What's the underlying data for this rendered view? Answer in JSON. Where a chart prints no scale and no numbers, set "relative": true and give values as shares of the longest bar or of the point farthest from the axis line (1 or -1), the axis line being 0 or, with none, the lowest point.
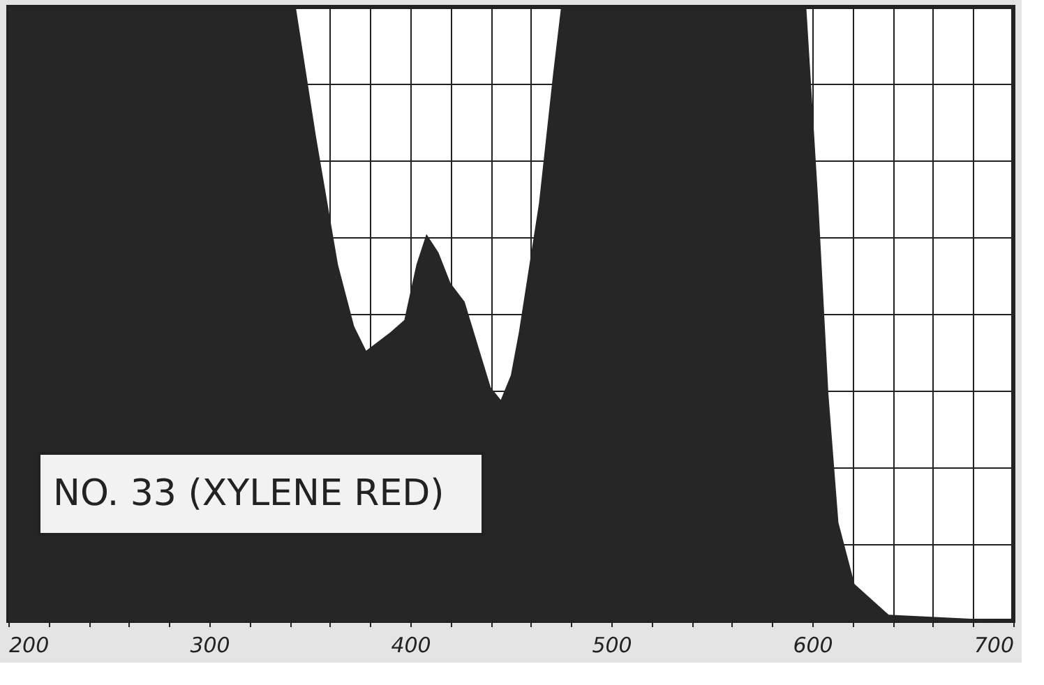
{
  "chart_data": {
    "type": "area",
    "relative": true,
    "color": "#262626",
    "x": [
      200,
      343,
      353,
      364,
      372,
      378,
      390,
      397,
      403,
      408,
      414,
      420,
      427,
      440,
      445,
      450,
      454,
      464,
      471,
      475,
      597,
      603,
      608,
      613,
      621,
      638,
      700
    ],
    "values": [
      1,
      1,
      0.79,
      0.58,
      0.48,
      0.44,
      0.47,
      0.49,
      0.58,
      0.63,
      0.6,
      0.55,
      0.52,
      0.38,
      0.36,
      0.4,
      0.47,
      0.68,
      0.89,
      1,
      1,
      0.68,
      0.37,
      0.16,
      0.06,
      0.01,
      0
    ],
    "xlim": [
      200,
      700
    ],
    "xticks": [
      200,
      {
        "value": 220,
        "label": null
      },
      {
        "value": 240,
        "label": null
      },
      {
        "value": 260,
        "label": null
      },
      {
        "value": 280,
        "label": null
      },
      300,
      {
        "value": 320,
        "label": null
      },
      {
        "value": 340,
        "label": null
      },
      {
        "value": 360,
        "label": null
      },
      {
        "value": 380,
        "label": null
      },
      400,
      {
        "value": 420,
        "label": null
      },
      {
        "value": 440,
        "label": null
      },
      {
        "value": 460,
        "label": null
      },
      {
        "value": 480,
        "label": null
      },
      500,
      {
        "value": 520,
        "label": null
      },
      {
        "value": 540,
        "label": null
      },
      {
        "value": 560,
        "label": null
      },
      {
        "value": 580,
        "label": null
      },
      600,
      {
        "value": 620,
        "label": null
      },
      {
        "value": 640,
        "label": null
      },
      {
        "value": 660,
        "label": null
      },
      {
        "value": 680,
        "label": null
      },
      700
    ],
    "grid": true,
    "annotations": [
      "NO. 33 (XYLENE RED)"
    ]
  }
}
